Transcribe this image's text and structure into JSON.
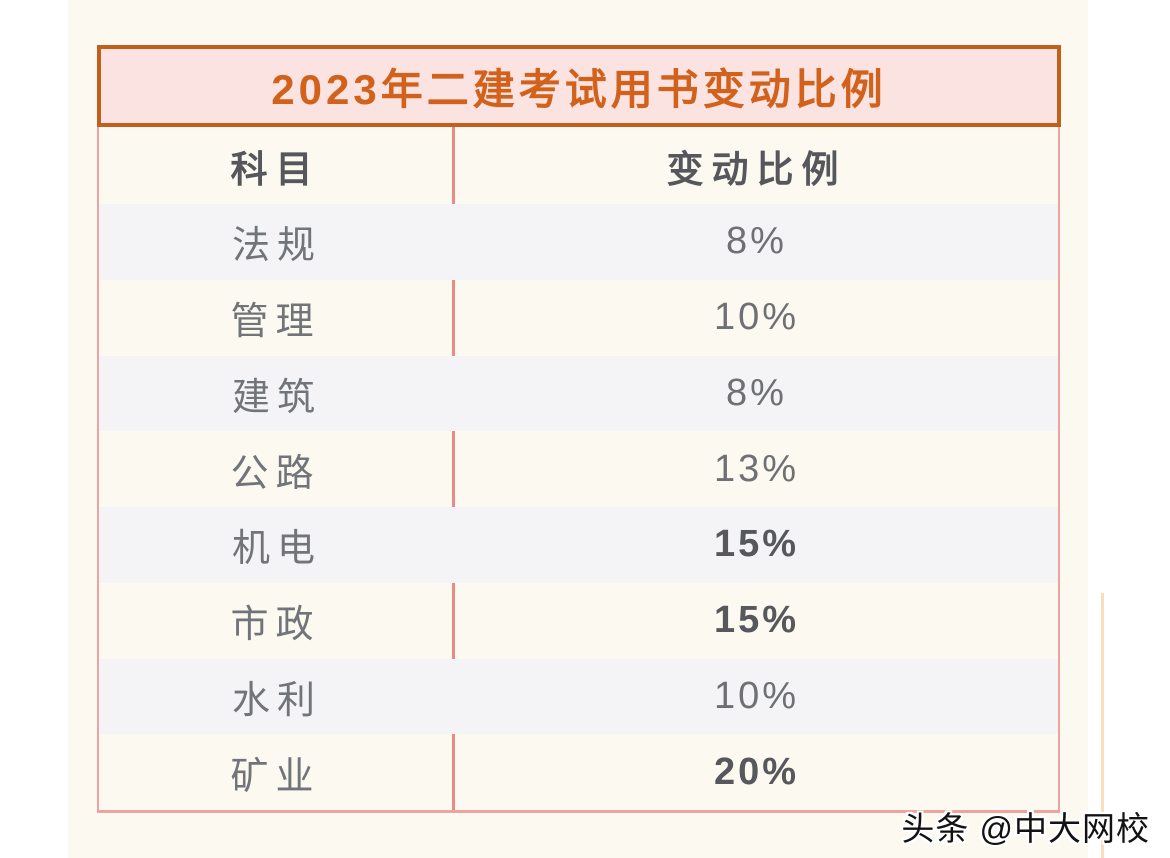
{
  "page": {
    "background": "#ffffff",
    "panel_color": "#fcf9f1"
  },
  "title": {
    "text": "2023年二建考试用书变动比例",
    "text_color": "#d2611c",
    "background": "#fae3e1",
    "border_color": "#c25f1d"
  },
  "table": {
    "border_color": "#efa3a1",
    "divider_color": "#e98a88",
    "stripe_color": "#f4f4f6",
    "header": {
      "subject": "科目",
      "ratio": "变动比例"
    },
    "rows": [
      {
        "subject": "法规",
        "ratio": "8%",
        "emphasis": false
      },
      {
        "subject": "管理",
        "ratio": "10%",
        "emphasis": false
      },
      {
        "subject": "建筑",
        "ratio": "8%",
        "emphasis": false
      },
      {
        "subject": "公路",
        "ratio": "13%",
        "emphasis": false
      },
      {
        "subject": "机电",
        "ratio": "15%",
        "emphasis": true
      },
      {
        "subject": "市政",
        "ratio": "15%",
        "emphasis": true
      },
      {
        "subject": "水利",
        "ratio": "10%",
        "emphasis": false
      },
      {
        "subject": "矿业",
        "ratio": "20%",
        "emphasis": true
      }
    ]
  },
  "watermark": {
    "text": "头条 @中大网校"
  },
  "chart_data": {
    "type": "table",
    "title": "2023年二建考试用书变动比例",
    "columns": [
      "科目",
      "变动比例"
    ],
    "categories": [
      "法规",
      "管理",
      "建筑",
      "公路",
      "机电",
      "市政",
      "水利",
      "矿业"
    ],
    "values": [
      8,
      10,
      8,
      13,
      15,
      15,
      10,
      20
    ],
    "unit": "%",
    "emphasized_categories": [
      "机电",
      "市政",
      "矿业"
    ]
  }
}
